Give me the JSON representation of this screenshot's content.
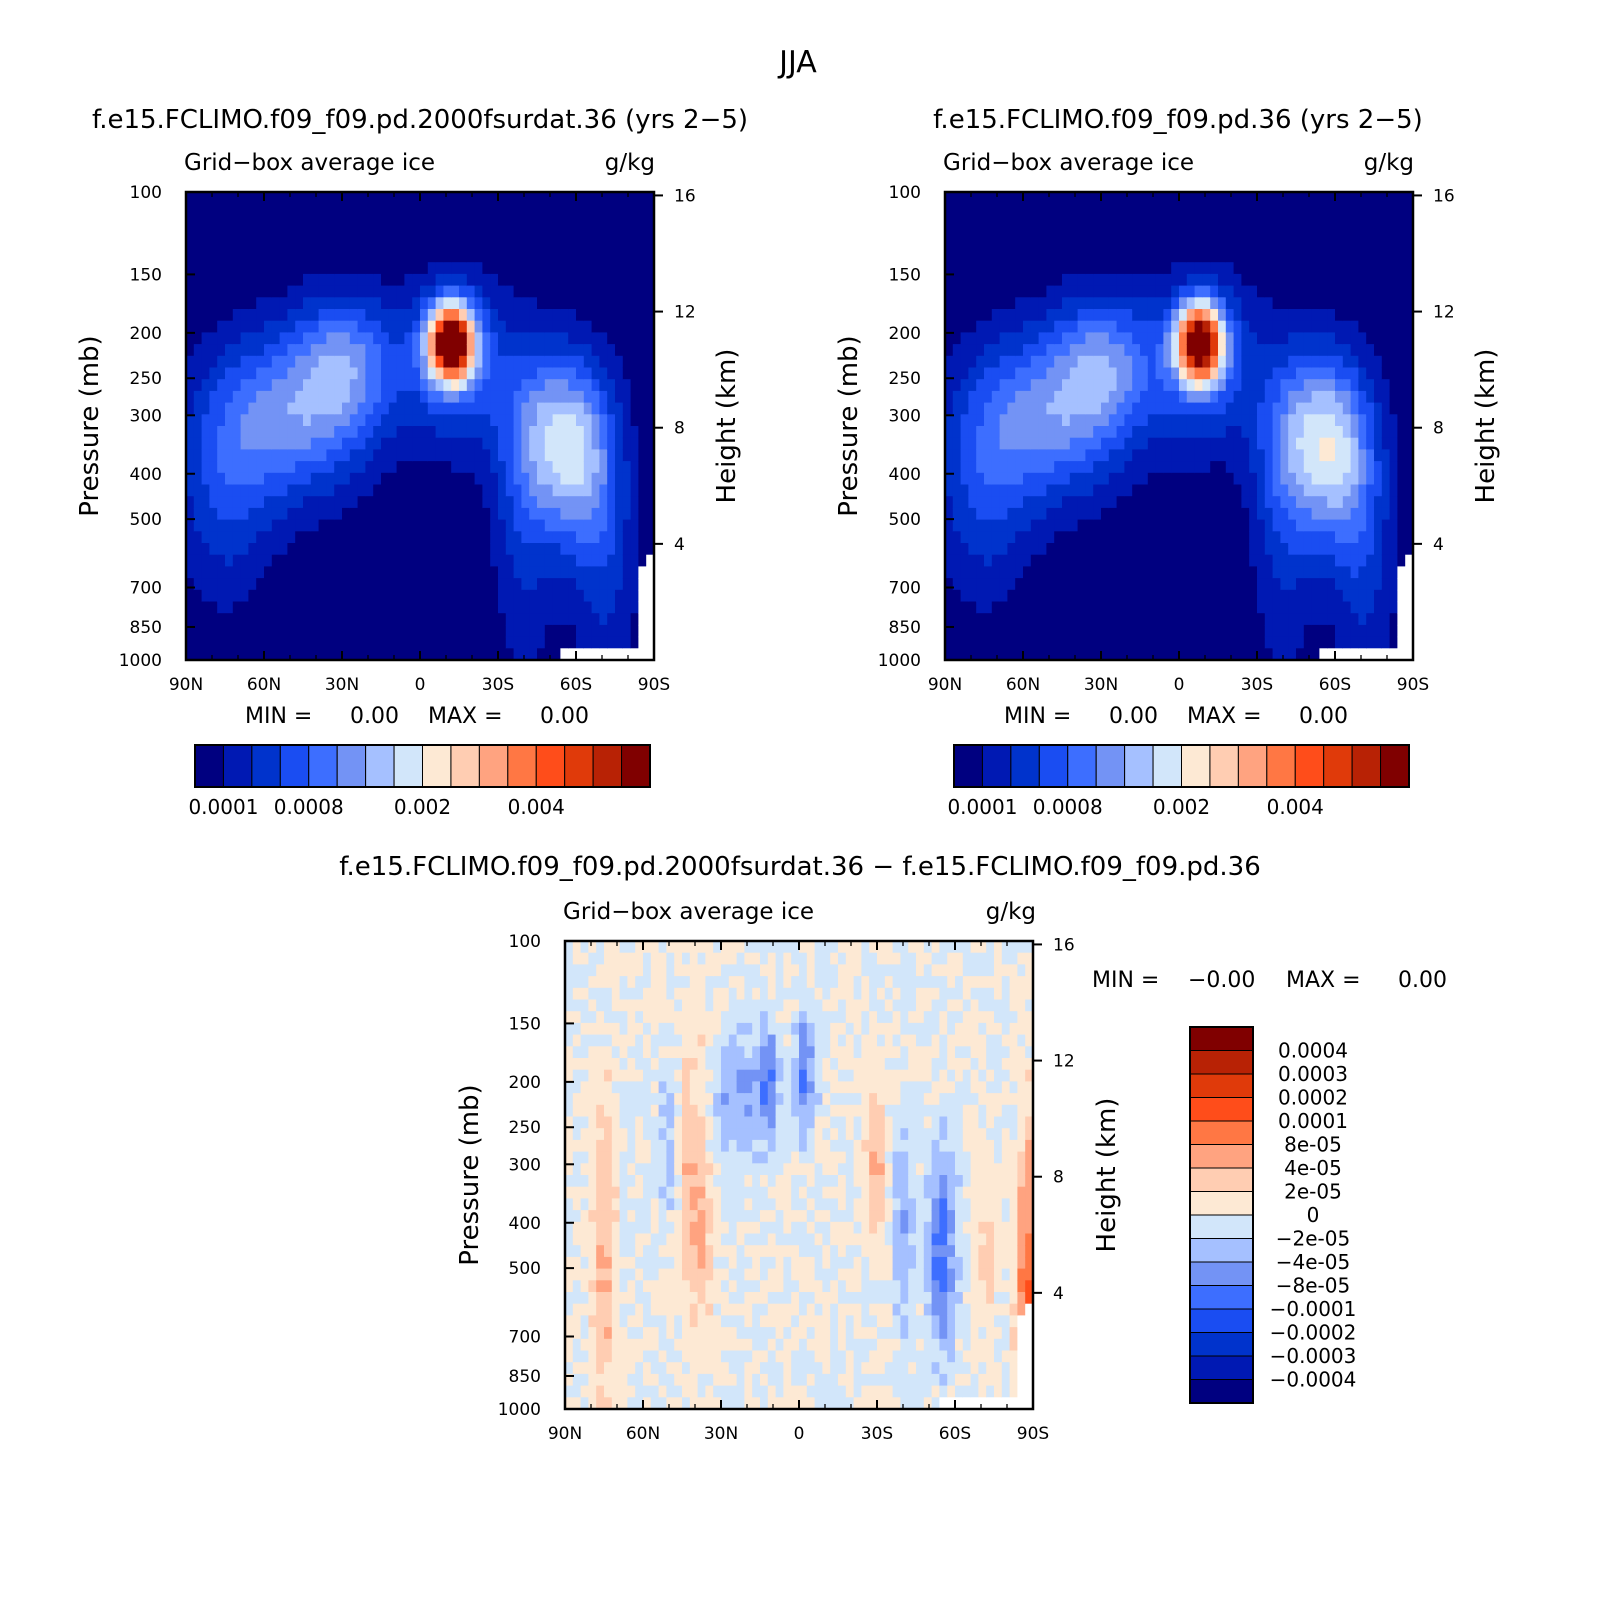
{
  "page": {
    "title": "JJA",
    "difference_title": "f.e15.FCLIMO.f09_f09.pd.2000fsurdat.36 − f.e15.FCLIMO.f09_f09.pd.36"
  },
  "colors": {
    "abs_scale": [
      "#000080",
      "#0019b3",
      "#0033cc",
      "#1a4df2",
      "#3d6eff",
      "#7393f5",
      "#a5c0ff",
      "#d2e6fa",
      "#fde9d4",
      "#ffcdb2",
      "#ffa380",
      "#ff7744",
      "#ff4d1a",
      "#e03a0a",
      "#b82205",
      "#800000"
    ],
    "diff_scale": [
      "#000080",
      "#0019b3",
      "#0033cc",
      "#1a4df2",
      "#3d6eff",
      "#7393f5",
      "#a5c0ff",
      "#d2e6fa",
      "#fde9d4",
      "#ffcdb2",
      "#ffa380",
      "#ff7744",
      "#ff4d1a",
      "#e03a0a",
      "#b82205",
      "#800000"
    ],
    "missing": "#ffffff"
  },
  "chart_data": [
    {
      "type": "heatmap",
      "name": "panel-left",
      "title": "f.e15.FCLIMO.f09_f09.pd.2000fsurdat.36 (yrs 2−5)",
      "variable": "Grid−box average ice",
      "units": "g/kg",
      "xlabel": "",
      "ylabel": "Pressure (mb)",
      "y2label": "Height (km)",
      "x_ticks": [
        "90N",
        "60N",
        "30N",
        "0",
        "30S",
        "60S",
        "90S"
      ],
      "y_ticks": [
        "100",
        "150",
        "200",
        "250",
        "300",
        "400",
        "500",
        "700",
        "850",
        "1000"
      ],
      "y_tick_values": [
        100,
        150,
        200,
        250,
        300,
        400,
        500,
        700,
        850,
        1000
      ],
      "y2_ticks": [
        "16",
        "12",
        "8",
        "4"
      ],
      "y2_tick_values": [
        16,
        12,
        8,
        4
      ],
      "xlim": [
        90,
        -90
      ],
      "ylim": [
        1000,
        100
      ],
      "min_label": "MIN =",
      "min_value": "0.00",
      "max_label": "MAX =",
      "max_value": "0.00",
      "colorbar_labels": [
        "0.0001",
        "0.0008",
        "0.002",
        "0.004"
      ],
      "colorbar_label_index": [
        0,
        3,
        7,
        11
      ],
      "field": [
        {
          "lat": -12,
          "p": 210,
          "amp": 15.5,
          "dlat": 6,
          "dlp": 0.13
        },
        {
          "lat": -14,
          "p": 230,
          "amp": 4,
          "dlat": 14,
          "dlp": 0.3
        },
        {
          "lat": -53,
          "p": 330,
          "amp": 5.2,
          "dlat": 13,
          "dlp": 0.3
        },
        {
          "lat": -62,
          "p": 400,
          "amp": 3,
          "dlat": 10,
          "dlp": 0.35
        },
        {
          "lat": 50,
          "p": 300,
          "amp": 5,
          "dlat": 22,
          "dlp": 0.3
        },
        {
          "lat": 28,
          "p": 230,
          "amp": 4,
          "dlat": 14,
          "dlp": 0.25
        },
        {
          "lat": -40,
          "p": 500,
          "amp": 2.2,
          "dlat": 9,
          "dlp": 0.55
        },
        {
          "lat": -72,
          "p": 650,
          "amp": 2,
          "dlat": 9,
          "dlp": 0.5
        },
        {
          "lat": 75,
          "p": 450,
          "amp": 2.5,
          "dlat": 14,
          "dlp": 0.4
        }
      ]
    },
    {
      "type": "heatmap",
      "name": "panel-right",
      "title": "f.e15.FCLIMO.f09_f09.pd.36 (yrs 2−5)",
      "variable": "Grid−box average ice",
      "units": "g/kg",
      "xlabel": "",
      "ylabel": "Pressure (mb)",
      "y2label": "Height (km)",
      "x_ticks": [
        "90N",
        "60N",
        "30N",
        "0",
        "30S",
        "60S",
        "90S"
      ],
      "y_ticks": [
        "100",
        "150",
        "200",
        "250",
        "300",
        "400",
        "500",
        "700",
        "850",
        "1000"
      ],
      "y_tick_values": [
        100,
        150,
        200,
        250,
        300,
        400,
        500,
        700,
        850,
        1000
      ],
      "y2_ticks": [
        "16",
        "12",
        "8",
        "4"
      ],
      "y2_tick_values": [
        16,
        12,
        8,
        4
      ],
      "xlim": [
        90,
        -90
      ],
      "ylim": [
        1000,
        100
      ],
      "min_label": "MIN =",
      "min_value": "0.00",
      "max_label": "MAX =",
      "max_value": "0.00",
      "colorbar_labels": [
        "0.0001",
        "0.0008",
        "0.002",
        "0.004"
      ],
      "colorbar_label_index": [
        0,
        3,
        7,
        11
      ],
      "field": [
        {
          "lat": -8,
          "p": 210,
          "amp": 15,
          "dlat": 6,
          "dlp": 0.13
        },
        {
          "lat": -10,
          "p": 230,
          "amp": 4,
          "dlat": 14,
          "dlp": 0.3
        },
        {
          "lat": -53,
          "p": 330,
          "amp": 5.5,
          "dlat": 13,
          "dlp": 0.3
        },
        {
          "lat": -62,
          "p": 400,
          "amp": 3,
          "dlat": 10,
          "dlp": 0.35
        },
        {
          "lat": 50,
          "p": 300,
          "amp": 5,
          "dlat": 22,
          "dlp": 0.3
        },
        {
          "lat": 28,
          "p": 230,
          "amp": 4,
          "dlat": 14,
          "dlp": 0.25
        },
        {
          "lat": -40,
          "p": 500,
          "amp": 2.2,
          "dlat": 9,
          "dlp": 0.55
        },
        {
          "lat": -72,
          "p": 650,
          "amp": 2,
          "dlat": 9,
          "dlp": 0.5
        },
        {
          "lat": 75,
          "p": 450,
          "amp": 2.5,
          "dlat": 14,
          "dlp": 0.4
        }
      ]
    },
    {
      "type": "heatmap",
      "name": "panel-diff",
      "title": "f.e15.FCLIMO.f09_f09.pd.2000fsurdat.36 − f.e15.FCLIMO.f09_f09.pd.36",
      "variable": "Grid−box average ice",
      "units": "g/kg",
      "xlabel": "",
      "ylabel": "Pressure (mb)",
      "y2label": "Height (km)",
      "x_ticks": [
        "90N",
        "60N",
        "30N",
        "0",
        "30S",
        "60S",
        "90S"
      ],
      "y_ticks": [
        "100",
        "150",
        "200",
        "250",
        "300",
        "400",
        "500",
        "700",
        "850",
        "1000"
      ],
      "y_tick_values": [
        100,
        150,
        200,
        250,
        300,
        400,
        500,
        700,
        850,
        1000
      ],
      "y2_ticks": [
        "16",
        "12",
        "8",
        "4"
      ],
      "y2_tick_values": [
        16,
        12,
        8,
        4
      ],
      "xlim": [
        90,
        -90
      ],
      "ylim": [
        1000,
        100
      ],
      "min_label": "MIN =",
      "min_value": "−0.00",
      "max_label": "MAX =",
      "max_value": "0.00",
      "colorbar_labels": [
        "0.0004",
        "0.0003",
        "0.0002",
        "0.0001",
        "8e-05",
        "4e-05",
        "2e-05",
        "0",
        "−2e-05",
        "−4e-05",
        "−8e-05",
        "−0.0001",
        "−0.0002",
        "−0.0003",
        "−0.0004"
      ],
      "field": [
        {
          "lat": 75,
          "p": 480,
          "amp": 2.2,
          "dlat": 3,
          "dlp": 0.6
        },
        {
          "lat": 40,
          "p": 330,
          "amp": 2.3,
          "dlat": 5,
          "dlp": 0.5
        },
        {
          "lat": -30,
          "p": 290,
          "amp": 2.2,
          "dlat": 3,
          "dlp": 0.3
        },
        {
          "lat": -72,
          "p": 430,
          "amp": 1.5,
          "dlat": 3,
          "dlp": 0.3
        },
        {
          "lat": -88,
          "p": 600,
          "amp": 4,
          "dlat": 3,
          "dlp": 0.6
        },
        {
          "lat": 12,
          "p": 200,
          "amp": -3,
          "dlat": 3,
          "dlp": 0.2
        },
        {
          "lat": -2,
          "p": 190,
          "amp": -3.2,
          "dlat": 3,
          "dlp": 0.2
        },
        {
          "lat": 25,
          "p": 220,
          "amp": -2,
          "dlat": 8,
          "dlp": 0.25
        },
        {
          "lat": -55,
          "p": 460,
          "amp": -3.5,
          "dlat": 4,
          "dlp": 0.35
        },
        {
          "lat": -40,
          "p": 400,
          "amp": -2,
          "dlat": 3,
          "dlp": 0.4
        },
        {
          "lat": 50,
          "p": 280,
          "amp": -1.5,
          "dlat": 3,
          "dlp": 0.3
        }
      ]
    }
  ]
}
